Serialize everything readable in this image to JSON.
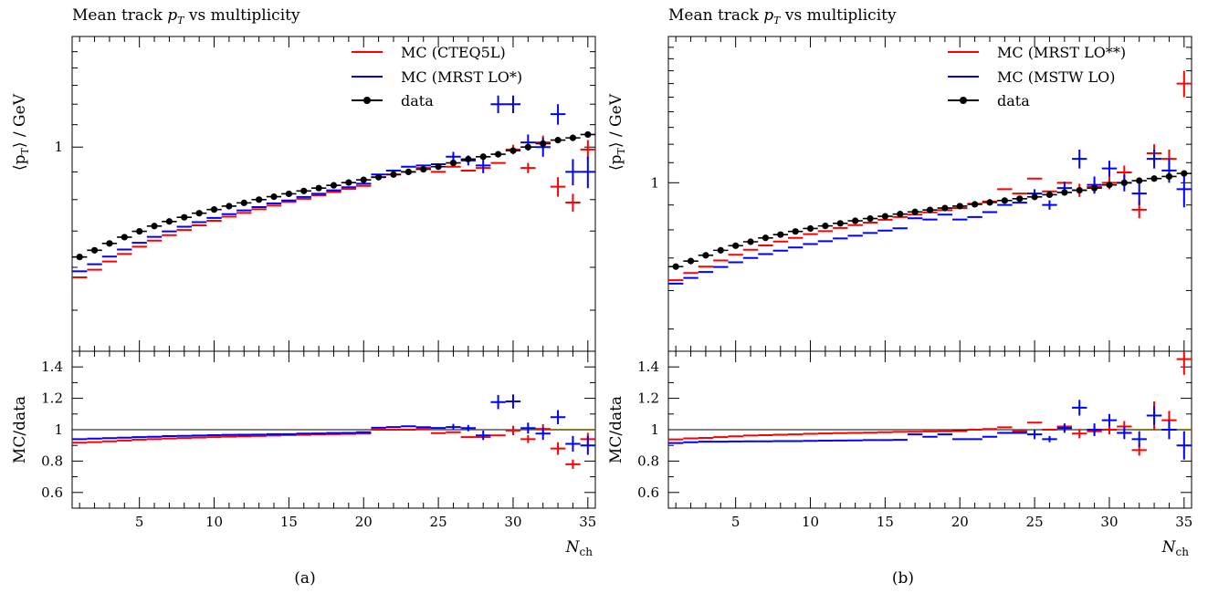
{
  "chart_data": [
    {
      "type": "scatter",
      "panel_caption": "(a)",
      "title": "Mean track p_T vs multiplicity",
      "title_parts": [
        "Mean track ",
        "p",
        "T",
        " vs multiplicity"
      ],
      "ylabel_parts": [
        "⟨p",
        "T",
        "⟩ / GeV"
      ],
      "ratio_ylabel": "MC/data",
      "xlabel_parts": [
        "N",
        "ch"
      ],
      "xlim": [
        0.5,
        35.5
      ],
      "main_yscale": "log",
      "main_ylim": [
        0.42,
        1.6
      ],
      "main_ytick_labels": [
        {
          "value": 1,
          "label": "1"
        }
      ],
      "ratio_ylim": [
        0.5,
        1.5
      ],
      "ratio_ticks": [
        {
          "value": 0.6,
          "label": "0.6"
        },
        {
          "value": 0.8,
          "label": "0.8"
        },
        {
          "value": 1.0,
          "label": "1"
        },
        {
          "value": 1.2,
          "label": "1.2"
        },
        {
          "value": 1.4,
          "label": "1.4"
        }
      ],
      "x_ticks": [
        {
          "value": 5,
          "label": "5"
        },
        {
          "value": 10,
          "label": "10"
        },
        {
          "value": 15,
          "label": "15"
        },
        {
          "value": 20,
          "label": "20"
        },
        {
          "value": 25,
          "label": "25"
        },
        {
          "value": 30,
          "label": "30"
        },
        {
          "value": 35,
          "label": "35"
        }
      ],
      "legend_position": "top-right",
      "x": [
        1,
        2,
        3,
        4,
        5,
        6,
        7,
        8,
        9,
        10,
        11,
        12,
        13,
        14,
        15,
        16,
        17,
        18,
        19,
        20,
        21,
        22,
        23,
        24,
        25,
        26,
        27,
        28,
        29,
        30,
        31,
        32,
        33,
        34,
        35
      ],
      "series": [
        {
          "name": "MC (CTEQ5L)",
          "color": "#ff0000",
          "style": "mc",
          "values": [
            0.575,
            0.594,
            0.615,
            0.635,
            0.655,
            0.672,
            0.688,
            0.703,
            0.717,
            0.731,
            0.744,
            0.756,
            0.768,
            0.78,
            0.792,
            0.803,
            0.815,
            0.826,
            0.837,
            0.848,
            0.88,
            0.89,
            0.9,
            0.915,
            0.9,
            0.92,
            0.905,
            0.915,
            0.935,
            0.99,
            0.915,
            1.02,
            0.845,
            0.79,
            0.99
          ],
          "yerr": [
            0,
            0,
            0,
            0,
            0,
            0,
            0,
            0,
            0,
            0,
            0,
            0,
            0,
            0,
            0,
            0,
            0,
            0,
            0,
            0,
            0,
            0,
            0,
            0,
            0,
            0,
            0,
            0,
            0,
            0.02,
            0.02,
            0.03,
            0.035,
            0.03,
            0.04
          ]
        },
        {
          "name": "MC (MRST LO*)",
          "color": "#0000ff",
          "style": "mc",
          "values": [
            0.59,
            0.608,
            0.628,
            0.647,
            0.666,
            0.683,
            0.699,
            0.713,
            0.727,
            0.74,
            0.752,
            0.764,
            0.775,
            0.787,
            0.797,
            0.809,
            0.82,
            0.832,
            0.843,
            0.856,
            0.89,
            0.905,
            0.92,
            0.925,
            0.93,
            0.96,
            0.945,
            0.925,
            1.2,
            1.2,
            1.02,
            1.0,
            1.15,
            0.9,
            0.9
          ],
          "yerr": [
            0,
            0,
            0,
            0,
            0,
            0,
            0,
            0,
            0,
            0,
            0,
            0,
            0,
            0,
            0,
            0,
            0,
            0,
            0,
            0,
            0,
            0,
            0,
            0,
            0,
            0.02,
            0.02,
            0.03,
            0.045,
            0.045,
            0.035,
            0.04,
            0.05,
            0.05,
            0.06
          ]
        },
        {
          "name": "data",
          "color": "#000000",
          "style": "data",
          "values": [
            0.627,
            0.645,
            0.664,
            0.682,
            0.699,
            0.715,
            0.729,
            0.742,
            0.755,
            0.767,
            0.778,
            0.789,
            0.8,
            0.81,
            0.82,
            0.83,
            0.84,
            0.85,
            0.86,
            0.87,
            0.88,
            0.89,
            0.9,
            0.91,
            0.92,
            0.935,
            0.95,
            0.96,
            0.97,
            0.985,
            1.0,
            1.015,
            1.03,
            1.04,
            1.055
          ],
          "yerr": [
            0,
            0,
            0,
            0,
            0,
            0,
            0,
            0,
            0,
            0,
            0,
            0,
            0,
            0,
            0,
            0,
            0,
            0,
            0,
            0,
            0,
            0,
            0,
            0,
            0,
            0,
            0,
            0,
            0,
            0,
            0,
            0,
            0,
            0,
            0
          ]
        }
      ],
      "ratio_series": [
        {
          "name": "MC (CTEQ5L)",
          "color": "#ff0000",
          "values": [
            0.917,
            0.921,
            0.926,
            0.931,
            0.937,
            0.94,
            0.944,
            0.947,
            0.95,
            0.953,
            0.956,
            0.958,
            0.96,
            0.963,
            0.966,
            0.967,
            0.97,
            0.972,
            0.973,
            0.975,
            1.0,
            1.0,
            1.0,
            1.005,
            0.978,
            0.984,
            0.953,
            0.953,
            0.964,
            0.995,
            0.94,
            1.005,
            0.88,
            0.78,
            0.94
          ],
          "yerr": [
            0,
            0,
            0,
            0,
            0,
            0,
            0,
            0,
            0,
            0,
            0,
            0,
            0,
            0,
            0,
            0,
            0,
            0,
            0,
            0,
            0,
            0,
            0,
            0,
            0,
            0,
            0,
            0,
            0,
            0.03,
            0.025,
            0.03,
            0.04,
            0.03,
            0.04
          ]
        },
        {
          "name": "MC (MRST LO*)",
          "color": "#0000ff",
          "values": [
            0.94,
            0.943,
            0.946,
            0.949,
            0.953,
            0.955,
            0.959,
            0.961,
            0.963,
            0.965,
            0.967,
            0.968,
            0.969,
            0.972,
            0.972,
            0.975,
            0.976,
            0.979,
            0.98,
            0.984,
            1.012,
            1.017,
            1.022,
            1.016,
            1.011,
            1.017,
            1.01,
            0.964,
            1.176,
            1.18,
            1.01,
            0.975,
            1.08,
            0.91,
            0.9
          ],
          "yerr": [
            0,
            0,
            0,
            0,
            0,
            0,
            0,
            0,
            0,
            0,
            0,
            0,
            0,
            0,
            0,
            0,
            0,
            0,
            0,
            0,
            0,
            0,
            0,
            0,
            0,
            0.02,
            0.02,
            0.03,
            0.045,
            0.045,
            0.035,
            0.04,
            0.045,
            0.05,
            0.06
          ]
        }
      ],
      "legend": [
        {
          "label": "MC (CTEQ5L)",
          "color": "#ff0000",
          "style": "line"
        },
        {
          "label": "MC (MRST LO*)",
          "color": "#0000ff",
          "style": "line"
        },
        {
          "label": "data",
          "color": "#000000",
          "style": "marker"
        }
      ]
    },
    {
      "type": "scatter",
      "panel_caption": "(b)",
      "title": "Mean track p_T vs multiplicity",
      "title_parts": [
        "Mean track ",
        "p",
        "T",
        " vs multiplicity"
      ],
      "ylabel_parts": [
        "⟨p",
        "T",
        "⟩ / GeV"
      ],
      "ratio_ylabel": "MC/data",
      "xlabel_parts": [
        "N",
        "ch"
      ],
      "xlim": [
        0.5,
        35.5
      ],
      "main_yscale": "log",
      "main_ylim": [
        0.45,
        2.0
      ],
      "main_ytick_labels": [
        {
          "value": 1,
          "label": "1"
        }
      ],
      "ratio_ylim": [
        0.5,
        1.5
      ],
      "ratio_ticks": [
        {
          "value": 0.6,
          "label": "0.6"
        },
        {
          "value": 0.8,
          "label": "0.8"
        },
        {
          "value": 1.0,
          "label": "1"
        },
        {
          "value": 1.2,
          "label": "1.2"
        },
        {
          "value": 1.4,
          "label": "1.4"
        }
      ],
      "x_ticks": [
        {
          "value": 5,
          "label": "5"
        },
        {
          "value": 10,
          "label": "10"
        },
        {
          "value": 15,
          "label": "15"
        },
        {
          "value": 20,
          "label": "20"
        },
        {
          "value": 25,
          "label": "25"
        },
        {
          "value": 30,
          "label": "30"
        },
        {
          "value": 35,
          "label": "35"
        }
      ],
      "legend_position": "top-right",
      "x": [
        1,
        2,
        3,
        4,
        5,
        6,
        7,
        8,
        9,
        10,
        11,
        12,
        13,
        14,
        15,
        16,
        17,
        18,
        19,
        20,
        21,
        22,
        23,
        24,
        25,
        26,
        27,
        28,
        29,
        30,
        31,
        32,
        33,
        34,
        35
      ],
      "series": [
        {
          "name": "MC (MRST LO**)",
          "color": "#ff0000",
          "style": "mc",
          "values": [
            0.63,
            0.652,
            0.672,
            0.692,
            0.711,
            0.728,
            0.743,
            0.757,
            0.77,
            0.784,
            0.795,
            0.807,
            0.818,
            0.828,
            0.839,
            0.85,
            0.86,
            0.869,
            0.878,
            0.887,
            0.905,
            0.915,
            0.97,
            0.95,
            1.02,
            0.96,
            1.0,
            0.965,
            0.98,
            1.0,
            1.05,
            0.88,
            1.15,
            1.12,
            1.6
          ],
          "yerr": [
            0,
            0,
            0,
            0,
            0,
            0,
            0,
            0,
            0,
            0,
            0,
            0,
            0,
            0,
            0,
            0,
            0,
            0,
            0,
            0,
            0,
            0,
            0,
            0,
            0,
            0,
            0,
            0.03,
            0.03,
            0.03,
            0.035,
            0.035,
            0.05,
            0.05,
            0.1
          ]
        },
        {
          "name": "MC (MSTW LO)",
          "color": "#0000ff",
          "style": "mc",
          "values": [
            0.62,
            0.637,
            0.655,
            0.671,
            0.686,
            0.7,
            0.713,
            0.725,
            0.736,
            0.748,
            0.758,
            0.768,
            0.778,
            0.788,
            0.797,
            0.806,
            0.845,
            0.84,
            0.86,
            0.84,
            0.85,
            0.87,
            0.9,
            0.91,
            0.95,
            0.9,
            0.975,
            1.12,
            0.99,
            1.07,
            1.0,
            0.95,
            1.12,
            1.06,
            0.97
          ],
          "yerr": [
            0,
            0,
            0,
            0,
            0,
            0,
            0,
            0,
            0,
            0,
            0,
            0,
            0,
            0,
            0,
            0,
            0,
            0,
            0,
            0,
            0,
            0,
            0,
            0,
            0.02,
            0.02,
            0.03,
            0.05,
            0.04,
            0.04,
            0.04,
            0.05,
            0.05,
            0.06,
            0.08
          ]
        },
        {
          "name": "data",
          "color": "#000000",
          "style": "data",
          "values": [
            0.672,
            0.69,
            0.709,
            0.726,
            0.742,
            0.756,
            0.77,
            0.782,
            0.794,
            0.805,
            0.815,
            0.825,
            0.835,
            0.844,
            0.853,
            0.862,
            0.871,
            0.879,
            0.887,
            0.895,
            0.903,
            0.911,
            0.919,
            0.927,
            0.935,
            0.945,
            0.955,
            0.965,
            0.975,
            0.99,
            1.0,
            1.01,
            1.02,
            1.03,
            1.045
          ],
          "yerr": [
            0,
            0,
            0,
            0,
            0,
            0,
            0,
            0,
            0,
            0,
            0,
            0,
            0,
            0,
            0,
            0,
            0,
            0,
            0,
            0,
            0,
            0,
            0,
            0,
            0,
            0,
            0,
            0,
            0,
            0,
            0,
            0,
            0,
            0,
            0
          ]
        }
      ],
      "ratio_series": [
        {
          "name": "MC (MRST LO**)",
          "color": "#ff0000",
          "values": [
            0.938,
            0.945,
            0.948,
            0.953,
            0.958,
            0.963,
            0.965,
            0.968,
            0.97,
            0.974,
            0.976,
            0.978,
            0.98,
            0.981,
            0.984,
            0.986,
            0.987,
            0.989,
            0.99,
            0.991,
            1.0,
            1.004,
            1.015,
            0.99,
            1.045,
            1.0,
            1.02,
            0.975,
            0.99,
            1.0,
            1.02,
            0.87,
            1.09,
            1.06,
            1.45
          ],
          "yerr": [
            0,
            0,
            0,
            0,
            0,
            0,
            0,
            0,
            0,
            0,
            0,
            0,
            0,
            0,
            0,
            0,
            0,
            0,
            0,
            0,
            0,
            0,
            0,
            0,
            0,
            0,
            0,
            0.03,
            0.03,
            0.03,
            0.035,
            0.035,
            0.09,
            0.06,
            0.1
          ]
        },
        {
          "name": "MC (MSTW LO)",
          "color": "#0000ff",
          "values": [
            0.915,
            0.92,
            0.924,
            0.924,
            0.925,
            0.926,
            0.926,
            0.927,
            0.927,
            0.929,
            0.93,
            0.931,
            0.932,
            0.934,
            0.934,
            0.935,
            0.97,
            0.955,
            0.97,
            0.94,
            0.94,
            0.955,
            0.98,
            0.98,
            0.97,
            0.94,
            1.01,
            1.14,
            1.0,
            1.06,
            0.98,
            0.94,
            1.09,
            1.0,
            0.9
          ],
          "yerr": [
            0,
            0,
            0,
            0,
            0,
            0,
            0,
            0,
            0,
            0,
            0,
            0,
            0,
            0,
            0,
            0,
            0,
            0,
            0,
            0,
            0,
            0,
            0,
            0,
            0.03,
            0.02,
            0.03,
            0.05,
            0.04,
            0.04,
            0.04,
            0.05,
            0.06,
            0.06,
            0.09
          ]
        }
      ],
      "legend": [
        {
          "label": "MC (MRST LO**)",
          "color": "#ff0000",
          "style": "line"
        },
        {
          "label": "MC (MSTW LO)",
          "color": "#0000ff",
          "style": "line"
        },
        {
          "label": "data",
          "color": "#000000",
          "style": "marker"
        }
      ]
    }
  ]
}
